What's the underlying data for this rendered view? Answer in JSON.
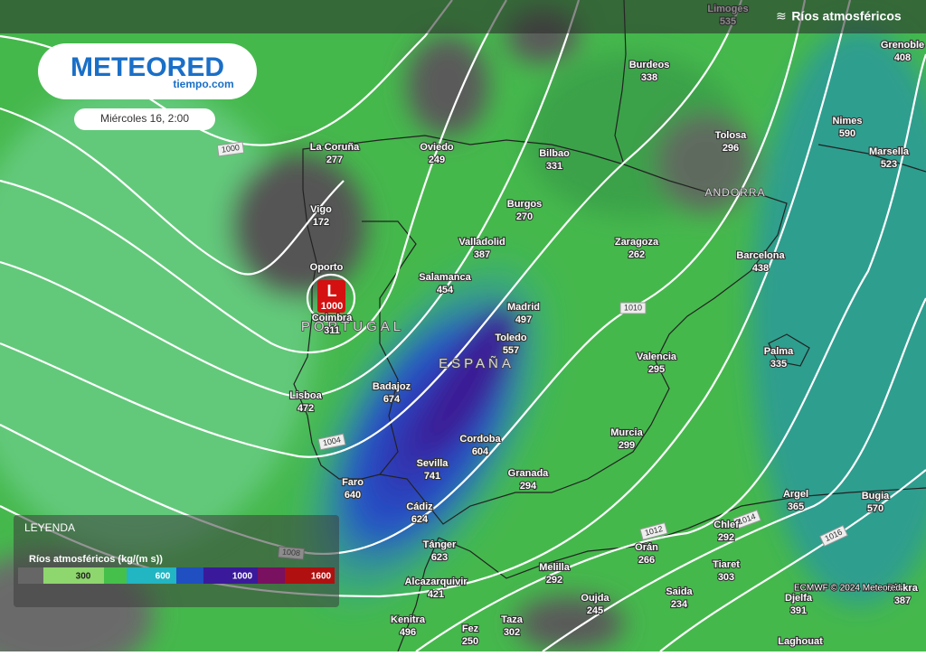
{
  "header": {
    "title": "Ríos atmosféricos"
  },
  "logo": {
    "brand": "METEORED",
    "site": "tiempo.com"
  },
  "date": "Miércoles 16, 2:00",
  "cities": [
    {
      "name": "Limoges",
      "value": 535
    },
    {
      "name": "Burdeos",
      "value": 338
    },
    {
      "name": "Grenoble",
      "value": 408
    },
    {
      "name": "Nimes",
      "value": 590
    },
    {
      "name": "Marsella",
      "value": 523
    },
    {
      "name": "Tolosa",
      "value": 296
    },
    {
      "name": "La Coruña",
      "value": 277
    },
    {
      "name": "Oviedo",
      "value": 249
    },
    {
      "name": "Bilbao",
      "value": 331
    },
    {
      "name": "Burgos",
      "value": 270
    },
    {
      "name": "Vigo",
      "value": 172
    },
    {
      "name": "Valladolid",
      "value": 387
    },
    {
      "name": "Zaragoza",
      "value": 262
    },
    {
      "name": "Barcelona",
      "value": 438
    },
    {
      "name": "Oporto"
    },
    {
      "name": "Salamanca",
      "value": 454
    },
    {
      "name": "Madrid",
      "value": 497
    },
    {
      "name": "Coimbra",
      "value": 311
    },
    {
      "name": "Toledo",
      "value": 557
    },
    {
      "name": "Palma",
      "value": 335
    },
    {
      "name": "Valencia",
      "value": 295
    },
    {
      "name": "Badajoz",
      "value": 674
    },
    {
      "name": "Lisboa",
      "value": 472
    },
    {
      "name": "Cordoba",
      "value": 604
    },
    {
      "name": "Murcia",
      "value": 299
    },
    {
      "name": "Sevilla",
      "value": 741
    },
    {
      "name": "Granada",
      "value": 294
    },
    {
      "name": "Faro",
      "value": 640
    },
    {
      "name": "Argel",
      "value": 365
    },
    {
      "name": "Bugia",
      "value": 570
    },
    {
      "name": "Cádiz",
      "value": 624
    },
    {
      "name": "Chlef",
      "value": 292
    },
    {
      "name": "Tánger",
      "value": 623
    },
    {
      "name": "Orán",
      "value": 266
    },
    {
      "name": "Tiaret",
      "value": 303
    },
    {
      "name": "Melilla",
      "value": 292
    },
    {
      "name": "Alcazarquivir",
      "value": 421
    },
    {
      "name": "Saida",
      "value": 234
    },
    {
      "name": "Oujda",
      "value": 245
    },
    {
      "name": "Djelfa",
      "value": 391
    },
    {
      "name": "Kenitra",
      "value": 496
    },
    {
      "name": "Taza",
      "value": 302
    },
    {
      "name": "Fez",
      "value": 250
    },
    {
      "name": "Biskra",
      "value": 387
    },
    {
      "name": "Laghouat"
    }
  ],
  "countries": [
    "PORTUGAL",
    "ESPAÑA",
    "ANDORRA"
  ],
  "isobars": [
    "1000",
    "1010",
    "1004",
    "1008",
    "1012",
    "1014",
    "1016"
  ],
  "low": {
    "symbol": "L",
    "pressure": "1000"
  },
  "legend": {
    "title": "LEYENDA",
    "subtitle": "Ríos atmosféricos (kg/(m s))",
    "ticks": [
      "300",
      "600",
      "1000",
      "1600"
    ]
  },
  "credit": "ECMWF © 2024 Meteored"
}
